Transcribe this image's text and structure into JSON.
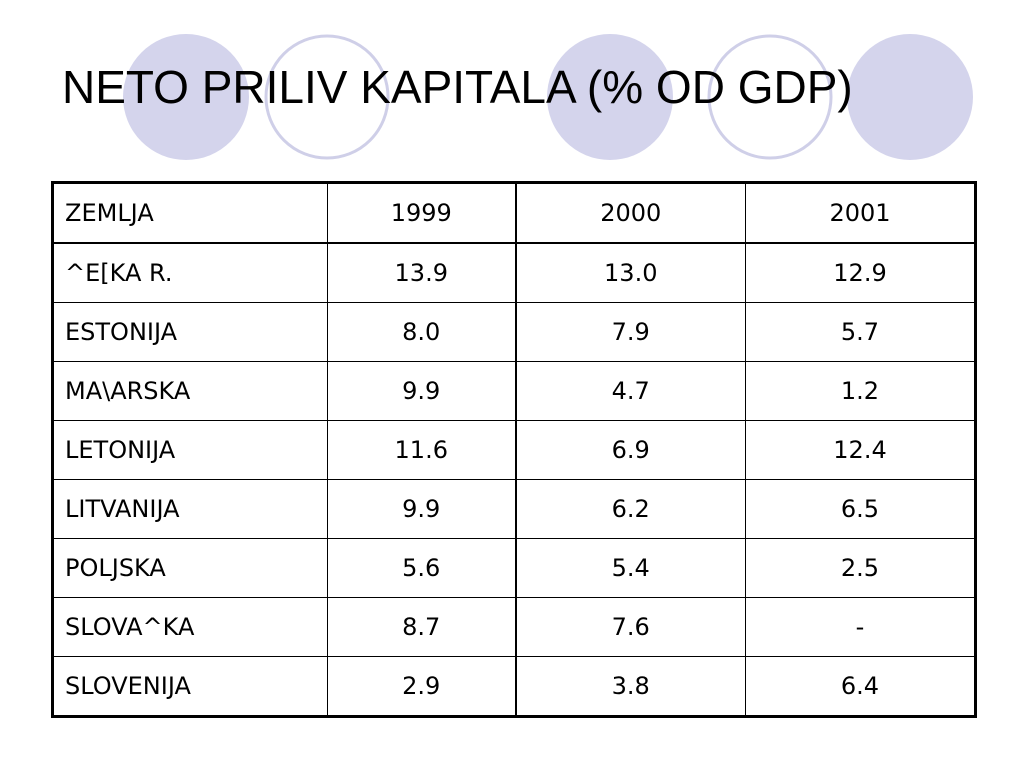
{
  "slide": {
    "title": "NETO PRILIV KAPITALA (% OD GDP)",
    "decoration": {
      "circle_fill_color": "#d4d4ec",
      "circle_outline_color": "#cfcfe8"
    }
  },
  "table": {
    "headers": [
      "ZEMLJA",
      "1999",
      "2000",
      "2001"
    ],
    "rows": [
      [
        "^E[KA R.",
        "13.9",
        "13.0",
        "12.9"
      ],
      [
        "ESTONIJA",
        "8.0",
        "7.9",
        "5.7"
      ],
      [
        "MA\\ARSKA",
        "9.9",
        "4.7",
        "1.2"
      ],
      [
        "LETONIJA",
        "11.6",
        "6.9",
        "12.4"
      ],
      [
        "LITVANIJA",
        "9.9",
        "6.2",
        "6.5"
      ],
      [
        "POLJSKA",
        "5.6",
        "5.4",
        "2.5"
      ],
      [
        "SLOVA^KA",
        "8.7",
        "7.6",
        "-"
      ],
      [
        "SLOVENIJA",
        "2.9",
        "3.8",
        "6.4"
      ]
    ]
  }
}
